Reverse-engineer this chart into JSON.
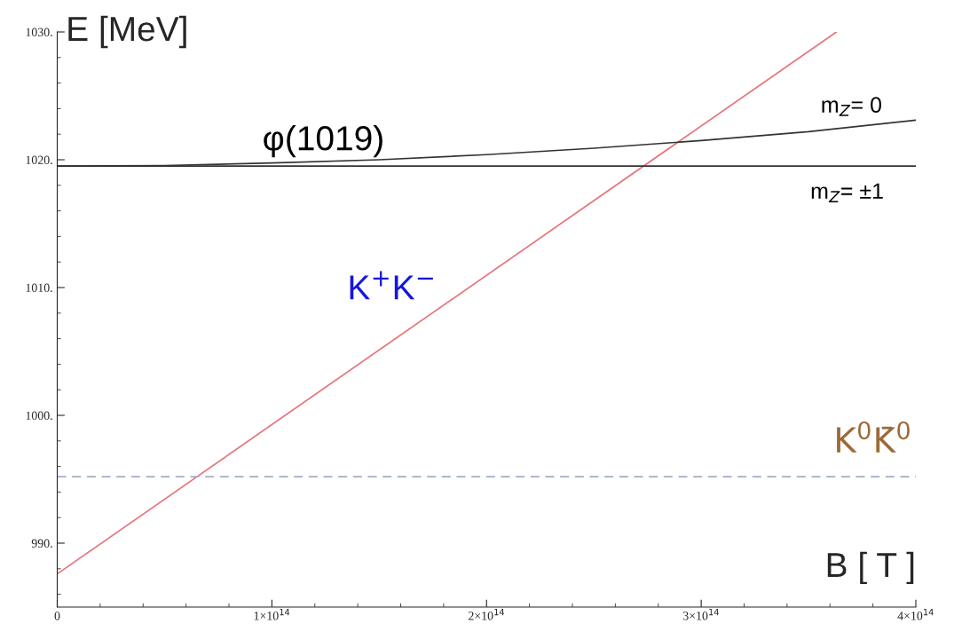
{
  "chart_data": {
    "type": "line",
    "xlabel": "B [ T ]",
    "ylabel": "E [MeV]",
    "xlim": [
      0,
      400000000000000.0
    ],
    "ylim": [
      985,
      1030
    ],
    "xticks": [
      0,
      {
        "value": 100000000000000.0,
        "label": "1×10$^{14}$"
      },
      {
        "value": 200000000000000.0,
        "label": "2×10$^{14}$"
      },
      {
        "value": 300000000000000.0,
        "label": "3×10$^{14}$"
      },
      {
        "value": 400000000000000.0,
        "label": "4×10$^{14}$"
      }
    ],
    "yticks": [
      {
        "value": 990,
        "label": "990."
      },
      {
        "value": 1000,
        "label": "1000."
      },
      {
        "value": 1010,
        "label": "1010."
      },
      {
        "value": 1020,
        "label": "1020."
      },
      {
        "value": 1030,
        "label": "1030."
      }
    ],
    "grid": false,
    "marker": "none",
    "series": [
      {
        "color": "#e8707a",
        "x": [
          0,
          363000000000000.0
        ],
        "values": [
          987.6,
          1030
        ],
        "line_style": "solid"
      },
      {
        "color": "#333333",
        "x": [
          0,
          400000000000000.0
        ],
        "values": [
          1019.5,
          1019.5
        ],
        "line_style": "solid"
      },
      {
        "color": "#333333",
        "x": [
          0,
          50000000000000.0,
          100000000000000.0,
          150000000000000.0,
          200000000000000.0,
          250000000000000.0,
          300000000000000.0,
          350000000000000.0,
          400000000000000.0
        ],
        "values": [
          1019.5,
          1019.55,
          1019.75,
          1020.0,
          1020.4,
          1020.9,
          1021.5,
          1022.2,
          1023.1
        ],
        "line_style": "solid"
      },
      {
        "color": "#a3adc8",
        "x": [
          0,
          400000000000000.0
        ],
        "values": [
          995.2,
          995.2
        ],
        "line_style": "dashed"
      }
    ],
    "annotations": [
      "φ(1019)",
      "m$_{Z}$= 0",
      "m$_{Z}$= ±1",
      "K$^{+}$K$^{−}$",
      "K$^{0}$K̄$^{0}$"
    ]
  }
}
